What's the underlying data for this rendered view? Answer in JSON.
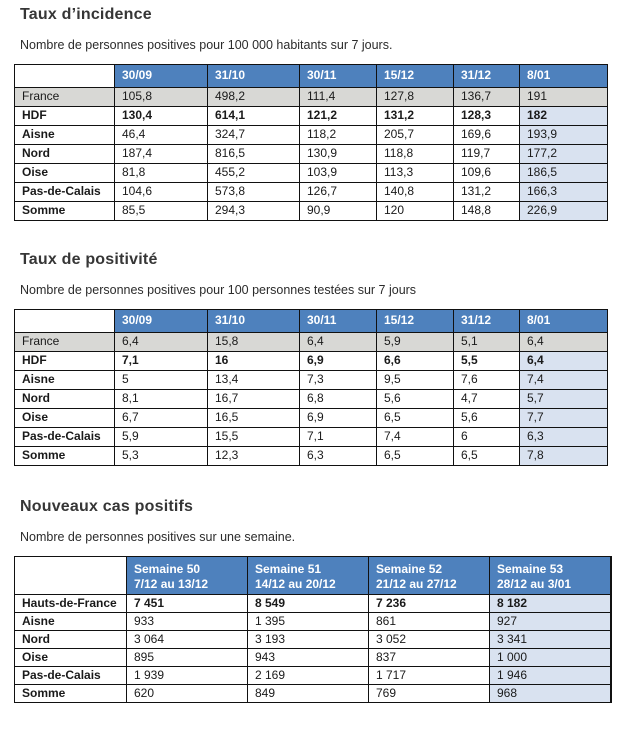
{
  "colors": {
    "header_blue": "#4e81bd",
    "light_blue": "#d9e2f0",
    "row_gray": "#d8d8d5",
    "header_text": "#ffffff"
  },
  "sections": [
    {
      "title": "Taux d’incidence",
      "subtitle": "Nombre de personnes positives pour 100 000 habitants sur 7 jours.",
      "table": {
        "columns": [
          [
            ""
          ],
          [
            "30/09"
          ],
          [
            "31/10"
          ],
          [
            "30/11"
          ],
          [
            "15/12"
          ],
          [
            "31/12"
          ],
          [
            "8/01"
          ]
        ],
        "rows": [
          {
            "label": "France",
            "gray": true,
            "values": [
              "105,8",
              "498,2",
              "111,4",
              "127,8",
              "136,7",
              "191"
            ]
          },
          {
            "label": "HDF",
            "bold": true,
            "values": [
              "130,4",
              "614,1",
              "121,2",
              "131,2",
              "128,3",
              "182"
            ]
          },
          {
            "label": "Aisne",
            "values": [
              "46,4",
              "324,7",
              "118,2",
              "205,7",
              "169,6",
              "193,9"
            ]
          },
          {
            "label": "Nord",
            "values": [
              "187,4",
              "816,5",
              "130,9",
              "118,8",
              "119,7",
              "177,2"
            ]
          },
          {
            "label": "Oise",
            "values": [
              "81,8",
              "455,2",
              "103,9",
              "113,3",
              "109,6",
              "186,5"
            ]
          },
          {
            "label": "Pas-de-Calais",
            "values": [
              "104,6",
              "573,8",
              "126,7",
              "140,8",
              "131,2",
              "166,3"
            ]
          },
          {
            "label": "Somme",
            "values": [
              "85,5",
              "294,3",
              "90,9",
              "120",
              "148,8",
              "226,9"
            ]
          }
        ]
      }
    },
    {
      "title": "Taux de positivité",
      "subtitle": "Nombre de personnes positives pour 100 personnes testées sur 7 jours",
      "table": {
        "columns": [
          [
            ""
          ],
          [
            "30/09"
          ],
          [
            "31/10"
          ],
          [
            "30/11"
          ],
          [
            "15/12"
          ],
          [
            "31/12"
          ],
          [
            "8/01"
          ]
        ],
        "rows": [
          {
            "label": "France",
            "gray": true,
            "values": [
              "6,4",
              "15,8",
              "6,4",
              "5,9",
              "5,1",
              "6,4"
            ]
          },
          {
            "label": "HDF",
            "bold": true,
            "values": [
              "7,1",
              "16",
              "6,9",
              "6,6",
              "5,5",
              "6,4"
            ]
          },
          {
            "label": "Aisne",
            "values": [
              "5",
              "13,4",
              "7,3",
              "9,5",
              "7,6",
              "7,4"
            ]
          },
          {
            "label": "Nord",
            "values": [
              "8,1",
              "16,7",
              "6,8",
              "5,6",
              "4,7",
              "5,7"
            ]
          },
          {
            "label": "Oise",
            "values": [
              "6,7",
              "16,5",
              "6,9",
              "6,5",
              "5,6",
              "7,7"
            ]
          },
          {
            "label": "Pas-de-Calais",
            "values": [
              "5,9",
              "15,5",
              "7,1",
              "7,4",
              "6",
              "6,3"
            ]
          },
          {
            "label": "Somme",
            "values": [
              "5,3",
              "12,3",
              "6,3",
              "6,5",
              "6,5",
              "7,8"
            ]
          }
        ]
      }
    },
    {
      "title": "Nouveaux cas positifs",
      "subtitle": "Nombre de personnes positives sur une semaine.",
      "table": {
        "columns": [
          [
            ""
          ],
          [
            "Semaine 50",
            "7/12 au 13/12"
          ],
          [
            "Semaine 51",
            "14/12 au 20/12"
          ],
          [
            "Semaine 52",
            "21/12 au 27/12"
          ],
          [
            "Semaine 53",
            "28/12 au 3/01"
          ]
        ],
        "rows": [
          {
            "label": "Hauts-de-France",
            "bold": true,
            "values": [
              "7 451",
              "8 549",
              "7 236",
              "8 182"
            ]
          },
          {
            "label": "Aisne",
            "values": [
              "933",
              "1 395",
              "861",
              "927"
            ]
          },
          {
            "label": "Nord",
            "values": [
              "3 064",
              "3 193",
              "3 052",
              "3 341"
            ]
          },
          {
            "label": "Oise",
            "values": [
              "895",
              "943",
              "837",
              "1 000"
            ]
          },
          {
            "label": "Pas-de-Calais",
            "values": [
              "1 939",
              "2 169",
              "1 717",
              "1 946"
            ]
          },
          {
            "label": "Somme",
            "values": [
              "620",
              "849",
              "769",
              "968"
            ]
          }
        ]
      }
    }
  ]
}
